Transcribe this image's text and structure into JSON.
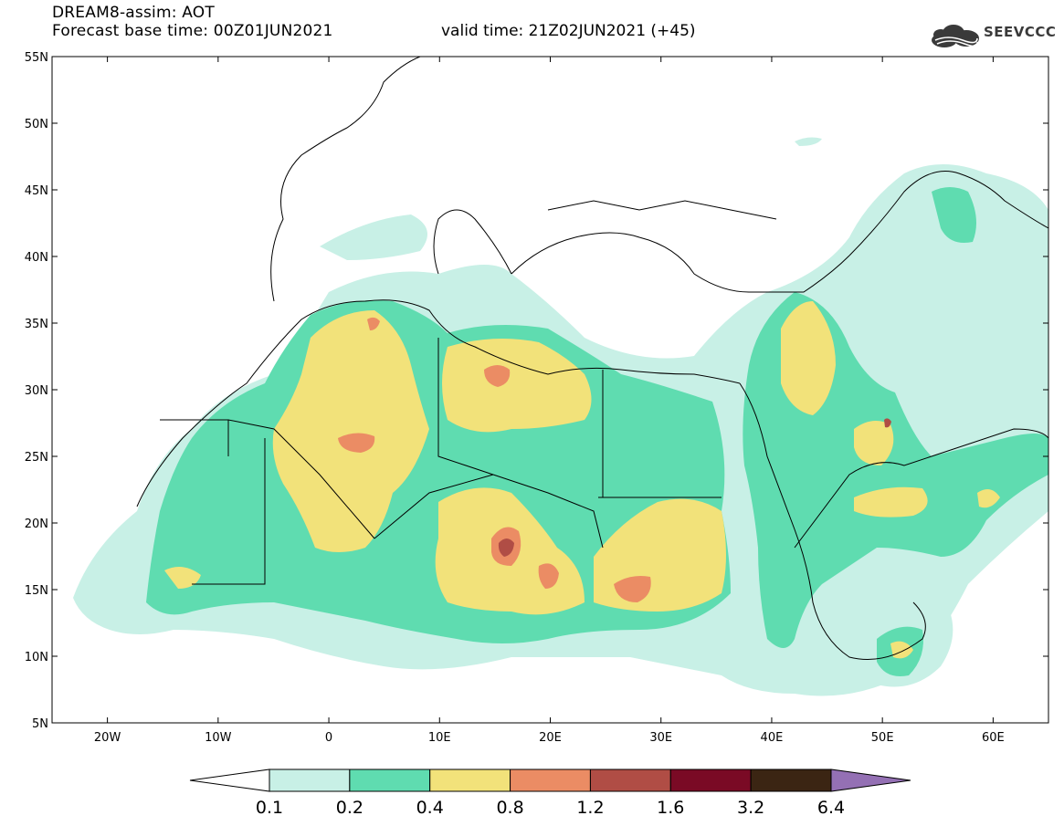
{
  "header": {
    "model_title": "DREAM8-assim: AOT",
    "base_time": "Forecast base time: 00Z01JUN2021",
    "valid_time": "valid time: 21Z02JUN2021 (+45)"
  },
  "logo": {
    "text": "SEEVCCC",
    "icon": "cloud-logo-icon"
  },
  "map": {
    "lon_range": [
      -25,
      65
    ],
    "lat_range": [
      5,
      55
    ],
    "lon_ticks": [
      {
        "value": -20,
        "label": "20W"
      },
      {
        "value": -10,
        "label": "10W"
      },
      {
        "value": 0,
        "label": "0"
      },
      {
        "value": 10,
        "label": "10E"
      },
      {
        "value": 20,
        "label": "20E"
      },
      {
        "value": 30,
        "label": "30E"
      },
      {
        "value": 40,
        "label": "40E"
      },
      {
        "value": 50,
        "label": "50E"
      },
      {
        "value": 60,
        "label": "60E"
      }
    ],
    "lat_ticks": [
      {
        "value": 55,
        "label": "55N"
      },
      {
        "value": 50,
        "label": "50N"
      },
      {
        "value": 45,
        "label": "45N"
      },
      {
        "value": 40,
        "label": "40N"
      },
      {
        "value": 35,
        "label": "35N"
      },
      {
        "value": 30,
        "label": "30N"
      },
      {
        "value": 25,
        "label": "25N"
      },
      {
        "value": 20,
        "label": "20N"
      },
      {
        "value": 15,
        "label": "15N"
      },
      {
        "value": 10,
        "label": "10N"
      },
      {
        "value": 5,
        "label": "5N"
      }
    ],
    "colors": {
      "lvl_0_1": "#c8f0e6",
      "lvl_0_2": "#5fdcb0",
      "lvl_0_4": "#f2e27a",
      "lvl_0_8": "#eb8c64",
      "lvl_1_2": "#b04d45",
      "lvl_1_6": "#7a0a25",
      "lvl_3_2": "#3b2513",
      "lvl_6_4": "#9470b4"
    }
  },
  "colorbar": {
    "bins": [
      {
        "color": "#ffffff"
      },
      {
        "color": "#c8f0e6"
      },
      {
        "color": "#5fdcb0"
      },
      {
        "color": "#f2e27a"
      },
      {
        "color": "#eb8c64"
      },
      {
        "color": "#b04d45"
      },
      {
        "color": "#7a0a25"
      },
      {
        "color": "#3b2513"
      },
      {
        "color": "#9470b4"
      }
    ],
    "labels": [
      "0.1",
      "0.2",
      "0.4",
      "0.8",
      "1.2",
      "1.6",
      "3.2",
      "6.4"
    ]
  }
}
